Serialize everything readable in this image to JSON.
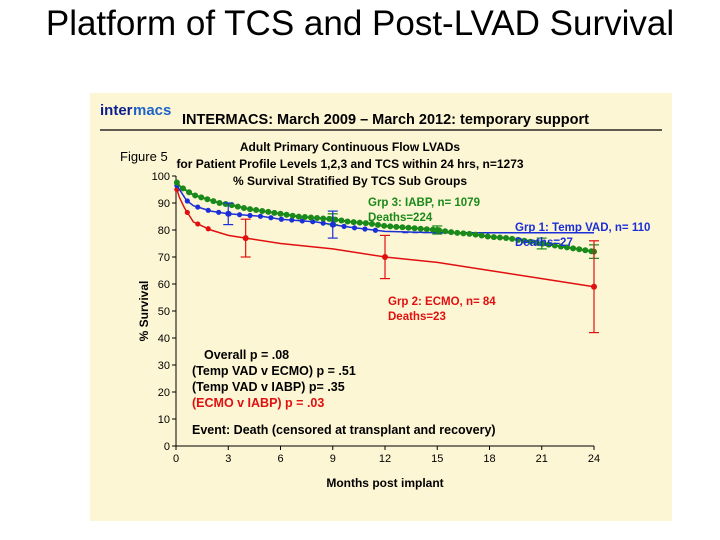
{
  "slide": {
    "title": "Platform of TCS and Post-LVAD Survival"
  },
  "figure": {
    "logo_prefix": "inter",
    "logo_suffix": "macs",
    "header": "INTERMACS: March 2009 – March 2012: temporary support",
    "figure_label": "Figure 5",
    "title_lines": [
      "Adult Primary Continuous Flow LVADs",
      "for Patient Profile Levels 1,2,3 and TCS within 24 hrs, n=1273",
      "% Survival Stratified By TCS Sub Groups"
    ],
    "stats": [
      "Overall p = .08",
      "(Temp VAD v ECMO) p = .51",
      "(Temp VAD v IABP) p= .35",
      "(ECMO v IABP) p = .03"
    ],
    "event_note": "Event: Death (censored at transplant and recovery)"
  },
  "colors": {
    "green": "#1a8a1a",
    "blue": "#1a2fd8",
    "red": "#e01010",
    "background": "#fdf6d4"
  },
  "chart_data": {
    "type": "line",
    "xlabel": "Months post implant",
    "ylabel": "% Survival",
    "xlim": [
      0,
      24
    ],
    "ylim": [
      0,
      100
    ],
    "x_ticks": [
      0,
      3,
      6,
      9,
      12,
      15,
      18,
      21,
      24
    ],
    "y_ticks": [
      0,
      10,
      20,
      30,
      40,
      50,
      60,
      70,
      80,
      90,
      100
    ],
    "series": [
      {
        "name": "Grp 3: IABP, n= 1079",
        "deaths": "Deaths=224",
        "color": "green",
        "x": [
          0,
          0.25,
          0.5,
          1,
          1.5,
          2,
          2.5,
          3,
          4,
          5,
          6,
          7,
          8,
          9,
          10,
          11,
          12,
          13,
          14,
          15,
          16,
          17,
          18,
          19,
          20,
          21,
          22,
          23,
          24
        ],
        "y": [
          98,
          96,
          95,
          93,
          92,
          91,
          90,
          89.5,
          88,
          87,
          86,
          85,
          84.5,
          84,
          83,
          82.5,
          81.5,
          81,
          80.5,
          80,
          79,
          78.5,
          77.5,
          77,
          76,
          75,
          74,
          73,
          72
        ]
      },
      {
        "name": "Grp 1: Temp VAD, n= 110",
        "deaths": "Deaths=27",
        "color": "blue",
        "x": [
          0,
          0.3,
          0.6,
          1,
          1.5,
          2,
          3,
          4,
          5,
          6,
          8,
          9,
          10,
          12,
          15,
          24
        ],
        "y": [
          97,
          94,
          91,
          89,
          88,
          87,
          86,
          85.5,
          85,
          84,
          83,
          82,
          81,
          79.5,
          79,
          79
        ]
      },
      {
        "name": "Grp 2: ECMO, n= 84",
        "deaths": "Deaths=23",
        "color": "red",
        "x": [
          0,
          0.2,
          0.5,
          0.8,
          1,
          2,
          3,
          4,
          6,
          9,
          12,
          15,
          18,
          21,
          24
        ],
        "y": [
          96,
          92,
          88,
          85,
          83,
          80,
          78,
          77,
          75,
          73,
          70,
          68,
          65,
          62,
          59
        ]
      }
    ],
    "error_bars": [
      {
        "series": "green",
        "x": 9,
        "y": 84,
        "low": 82,
        "high": 86
      },
      {
        "series": "green",
        "x": 15,
        "y": 80,
        "low": 78.5,
        "high": 81.5
      },
      {
        "series": "green",
        "x": 21,
        "y": 75,
        "low": 73,
        "high": 77
      },
      {
        "series": "green",
        "x": 24,
        "y": 72,
        "low": 69.5,
        "high": 74.5
      },
      {
        "series": "blue",
        "x": 3,
        "y": 86,
        "low": 82,
        "high": 90
      },
      {
        "series": "blue",
        "x": 9,
        "y": 82,
        "low": 77,
        "high": 87
      },
      {
        "series": "red",
        "x": 4,
        "y": 77,
        "low": 70,
        "high": 84
      },
      {
        "series": "red",
        "x": 12,
        "y": 70,
        "low": 62,
        "high": 78
      },
      {
        "series": "red",
        "x": 24,
        "y": 59,
        "low": 42,
        "high": 76
      }
    ],
    "reference_line": {
      "y": 79,
      "x_from": 13,
      "x_to": 24,
      "style": "dashed",
      "color": "blue"
    }
  }
}
